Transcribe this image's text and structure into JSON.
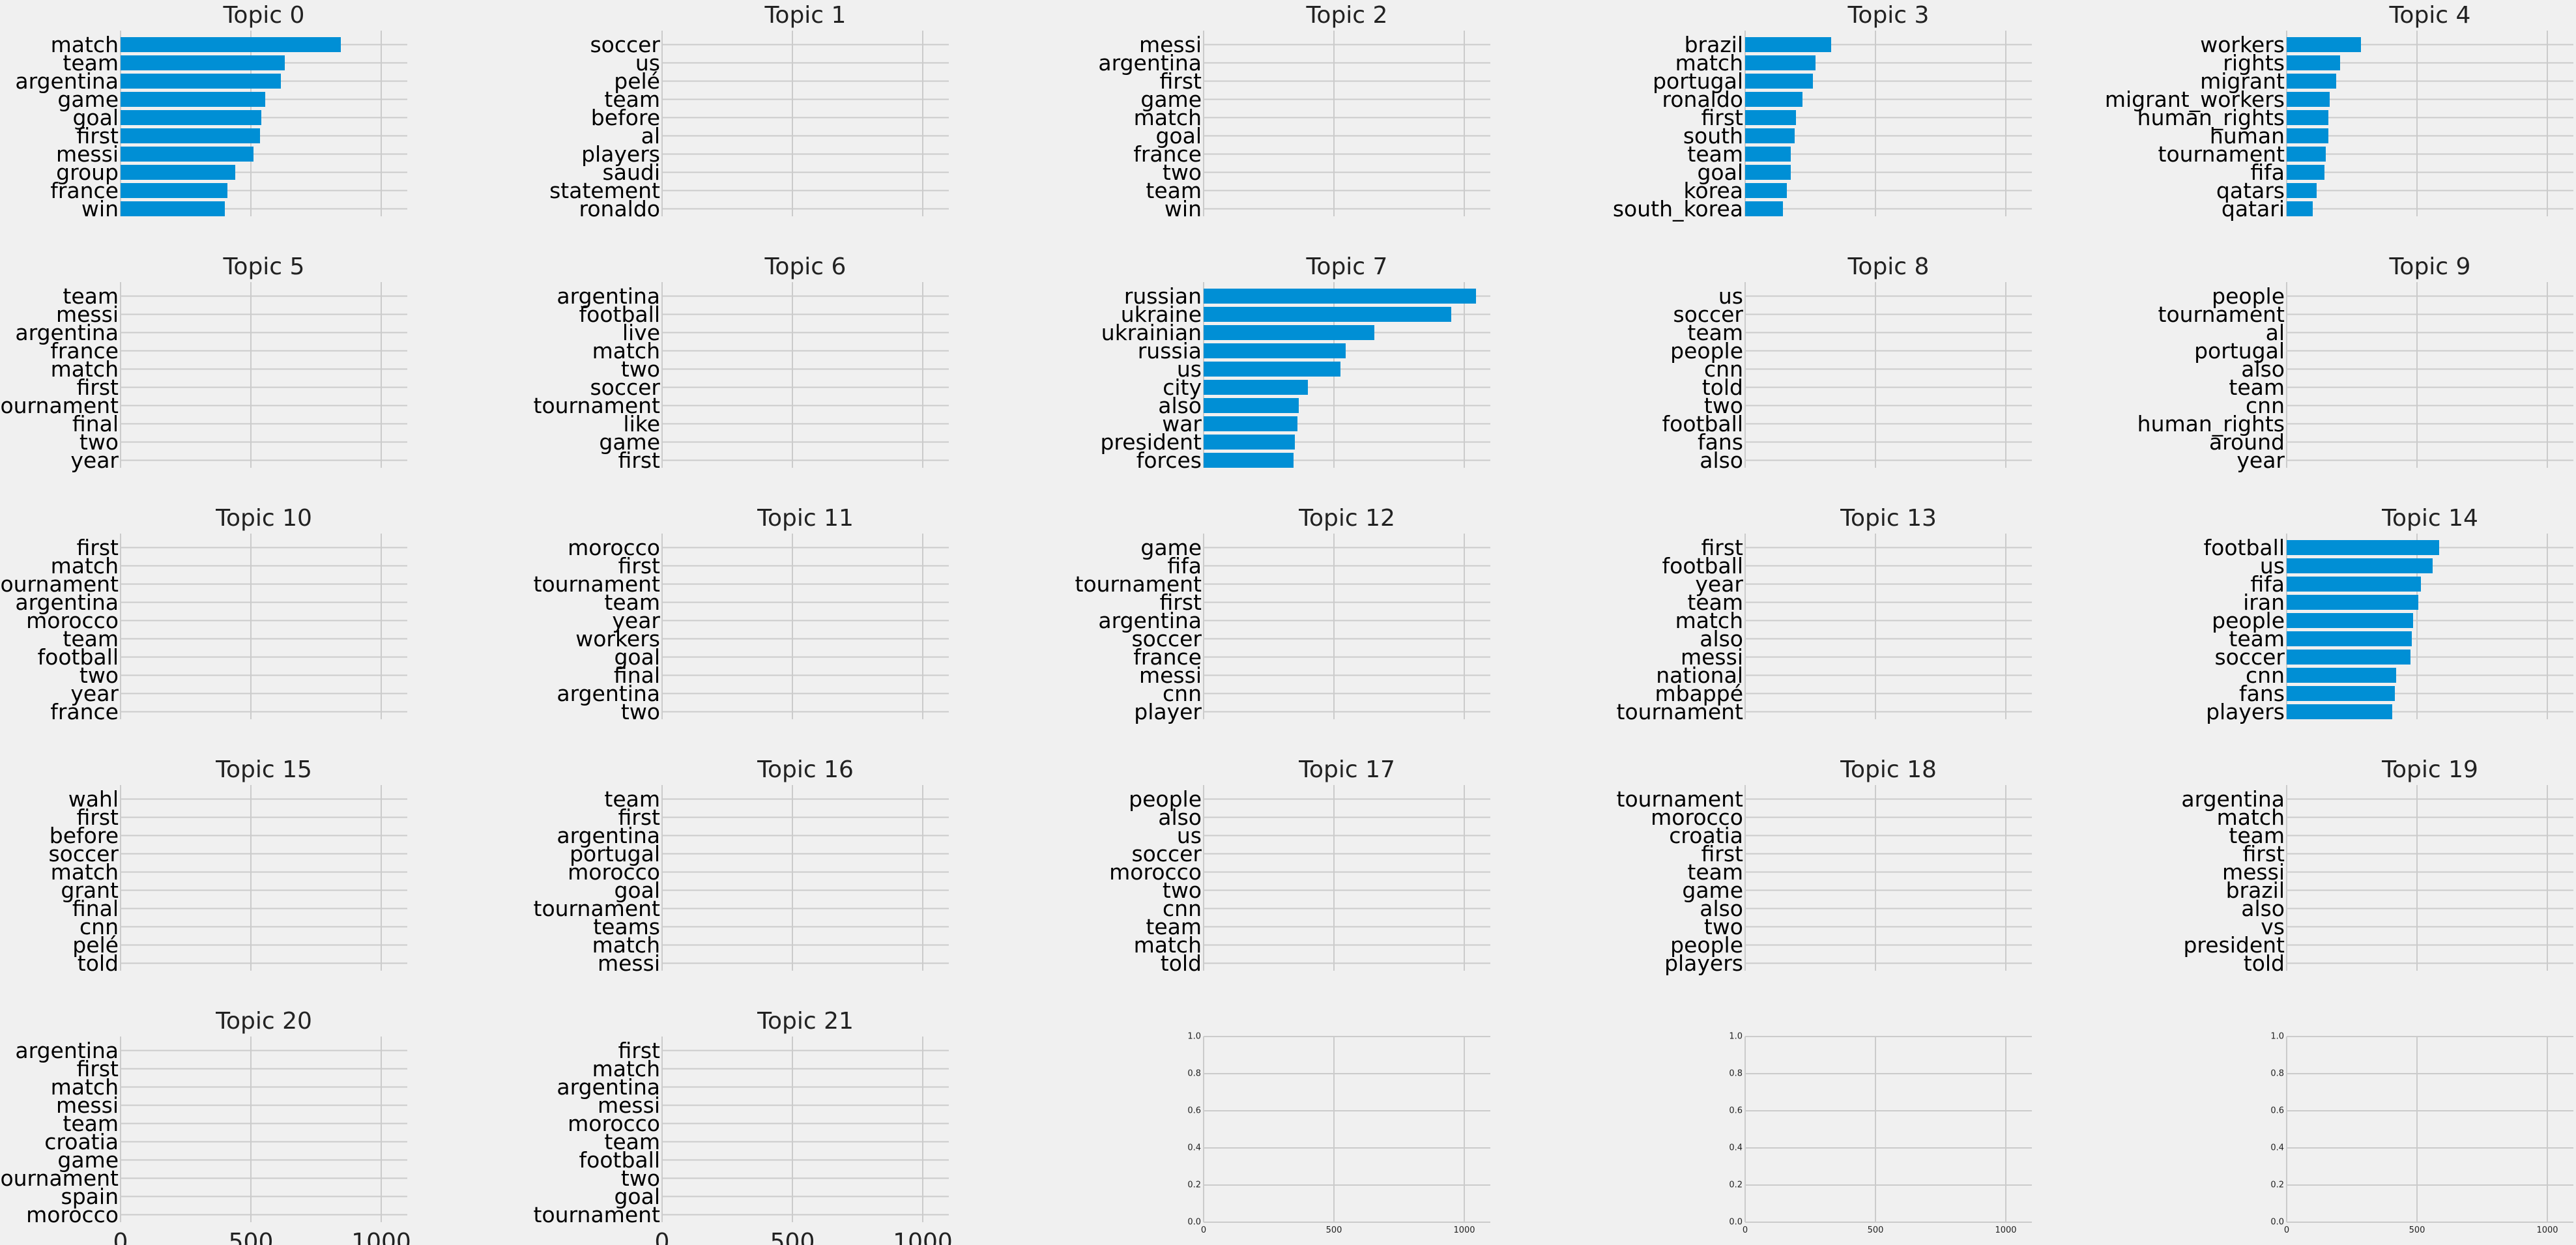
{
  "chart_data": {
    "type": "bar",
    "orientation": "horizontal",
    "layout_grid": {
      "rows": 5,
      "cols": 5
    },
    "grid": true,
    "colors": {
      "background": "#f0f0f0",
      "bar": "#008fd5",
      "grid": "#cbcbcb"
    },
    "xlim": [
      0,
      1100
    ],
    "xticks": [
      "0",
      "500",
      "1000"
    ],
    "panels": [
      {
        "title": "Topic 0",
        "categories": [
          "match",
          "team",
          "argentina",
          "game",
          "goal",
          "first",
          "messi",
          "group",
          "france",
          "win"
        ],
        "values": [
          845,
          630,
          615,
          555,
          540,
          535,
          510,
          440,
          410,
          400
        ]
      },
      {
        "title": "Topic 1",
        "categories": [
          "soccer",
          "us",
          "pelé",
          "team",
          "before",
          "al",
          "players",
          "saudi",
          "statement",
          "ronaldo"
        ],
        "values": [
          0,
          0,
          0,
          0,
          0,
          0,
          0,
          0,
          0,
          0
        ]
      },
      {
        "title": "Topic 2",
        "categories": [
          "messi",
          "argentina",
          "first",
          "game",
          "match",
          "goal",
          "france",
          "two",
          "team",
          "win"
        ],
        "values": [
          0,
          0,
          0,
          0,
          0,
          0,
          0,
          0,
          0,
          0
        ]
      },
      {
        "title": "Topic 3",
        "categories": [
          "brazil",
          "match",
          "portugal",
          "ronaldo",
          "first",
          "south",
          "team",
          "goal",
          "korea",
          "south_korea"
        ],
        "values": [
          330,
          270,
          260,
          220,
          195,
          190,
          175,
          175,
          160,
          145
        ]
      },
      {
        "title": "Topic 4",
        "categories": [
          "workers",
          "rights",
          "migrant",
          "migrant_workers",
          "human_rights",
          "human",
          "tournament",
          "fifa",
          "qatars",
          "qatari"
        ],
        "values": [
          285,
          205,
          190,
          165,
          160,
          160,
          150,
          145,
          115,
          100
        ]
      },
      {
        "title": "Topic 5",
        "categories": [
          "team",
          "messi",
          "argentina",
          "france",
          "match",
          "first",
          "tournament",
          "final",
          "two",
          "year"
        ],
        "values": [
          0,
          0,
          0,
          0,
          0,
          0,
          0,
          0,
          0,
          0
        ]
      },
      {
        "title": "Topic 6",
        "categories": [
          "argentina",
          "football",
          "live",
          "match",
          "two",
          "soccer",
          "tournament",
          "like",
          "game",
          "first"
        ],
        "values": [
          0,
          0,
          0,
          0,
          0,
          0,
          0,
          0,
          0,
          0
        ]
      },
      {
        "title": "Topic 7",
        "categories": [
          "russian",
          "ukraine",
          "ukrainian",
          "russia",
          "us",
          "city",
          "also",
          "war",
          "president",
          "forces"
        ],
        "values": [
          1045,
          950,
          655,
          545,
          525,
          400,
          365,
          360,
          350,
          345
        ]
      },
      {
        "title": "Topic 8",
        "categories": [
          "us",
          "soccer",
          "team",
          "people",
          "cnn",
          "told",
          "two",
          "football",
          "fans",
          "also"
        ],
        "values": [
          0,
          0,
          0,
          0,
          0,
          0,
          0,
          0,
          0,
          0
        ]
      },
      {
        "title": "Topic 9",
        "categories": [
          "people",
          "tournament",
          "al",
          "portugal",
          "also",
          "team",
          "cnn",
          "human_rights",
          "around",
          "year"
        ],
        "values": [
          0,
          0,
          0,
          0,
          0,
          0,
          0,
          0,
          0,
          0
        ]
      },
      {
        "title": "Topic 10",
        "categories": [
          "first",
          "match",
          "tournament",
          "argentina",
          "morocco",
          "team",
          "football",
          "two",
          "year",
          "france"
        ],
        "values": [
          0,
          0,
          0,
          0,
          0,
          0,
          0,
          0,
          0,
          0
        ]
      },
      {
        "title": "Topic 11",
        "categories": [
          "morocco",
          "first",
          "tournament",
          "team",
          "year",
          "workers",
          "goal",
          "final",
          "argentina",
          "two"
        ],
        "values": [
          0,
          0,
          0,
          0,
          0,
          0,
          0,
          0,
          0,
          0
        ]
      },
      {
        "title": "Topic 12",
        "categories": [
          "game",
          "fifa",
          "tournament",
          "first",
          "argentina",
          "soccer",
          "france",
          "messi",
          "cnn",
          "player"
        ],
        "values": [
          0,
          0,
          0,
          0,
          0,
          0,
          0,
          0,
          0,
          0
        ]
      },
      {
        "title": "Topic 13",
        "categories": [
          "first",
          "football",
          "year",
          "team",
          "match",
          "also",
          "messi",
          "national",
          "mbappé",
          "tournament"
        ],
        "values": [
          0,
          0,
          0,
          0,
          0,
          0,
          0,
          0,
          0,
          0
        ]
      },
      {
        "title": "Topic 14",
        "categories": [
          "football",
          "us",
          "fifa",
          "iran",
          "people",
          "team",
          "soccer",
          "cnn",
          "fans",
          "players"
        ],
        "values": [
          585,
          560,
          515,
          505,
          485,
          480,
          475,
          420,
          415,
          405
        ]
      },
      {
        "title": "Topic 15",
        "categories": [
          "wahl",
          "first",
          "before",
          "soccer",
          "match",
          "grant",
          "final",
          "cnn",
          "pelé",
          "told"
        ],
        "values": [
          0,
          0,
          0,
          0,
          0,
          0,
          0,
          0,
          0,
          0
        ]
      },
      {
        "title": "Topic 16",
        "categories": [
          "team",
          "first",
          "argentina",
          "portugal",
          "morocco",
          "goal",
          "tournament",
          "teams",
          "match",
          "messi"
        ],
        "values": [
          0,
          0,
          0,
          0,
          0,
          0,
          0,
          0,
          0,
          0
        ]
      },
      {
        "title": "Topic 17",
        "categories": [
          "people",
          "also",
          "us",
          "soccer",
          "morocco",
          "two",
          "cnn",
          "team",
          "match",
          "told"
        ],
        "values": [
          0,
          0,
          0,
          0,
          0,
          0,
          0,
          0,
          0,
          0
        ]
      },
      {
        "title": "Topic 18",
        "categories": [
          "tournament",
          "morocco",
          "croatia",
          "first",
          "team",
          "game",
          "also",
          "two",
          "people",
          "players"
        ],
        "values": [
          0,
          0,
          0,
          0,
          0,
          0,
          0,
          0,
          0,
          0
        ]
      },
      {
        "title": "Topic 19",
        "categories": [
          "argentina",
          "match",
          "team",
          "first",
          "messi",
          "brazil",
          "also",
          "vs",
          "president",
          "told"
        ],
        "values": [
          0,
          0,
          0,
          0,
          0,
          0,
          0,
          0,
          0,
          0
        ]
      },
      {
        "title": "Topic 20",
        "categories": [
          "argentina",
          "first",
          "match",
          "messi",
          "team",
          "croatia",
          "game",
          "tournament",
          "spain",
          "morocco"
        ],
        "values": [
          0,
          0,
          0,
          0,
          0,
          0,
          0,
          0,
          0,
          0
        ]
      },
      {
        "title": "Topic 21",
        "categories": [
          "first",
          "match",
          "argentina",
          "messi",
          "morocco",
          "team",
          "football",
          "two",
          "goal",
          "tournament"
        ],
        "values": [
          0,
          0,
          0,
          0,
          0,
          0,
          0,
          0,
          0,
          0
        ]
      }
    ],
    "empty_axes": {
      "count": 3,
      "xlim": [
        0,
        1100
      ],
      "ylim": [
        0,
        1
      ],
      "xticks": [
        "0",
        "500",
        "1000"
      ],
      "yticks": [
        "0.0",
        "0.2",
        "0.4",
        "0.6",
        "0.8",
        "1.0"
      ]
    }
  }
}
